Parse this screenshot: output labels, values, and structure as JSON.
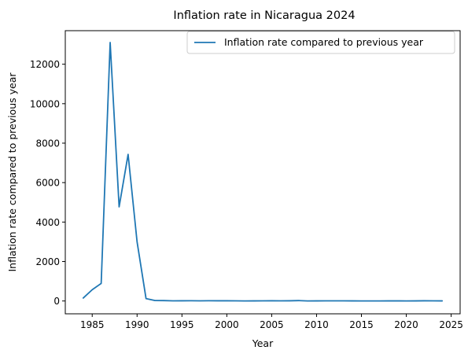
{
  "chart_data": {
    "type": "line",
    "title": "Inflation rate in Nicaragua 2024",
    "xlabel": "Year",
    "ylabel": "Inflation rate compared to previous year",
    "xlim": [
      1982,
      2026
    ],
    "ylim": [
      -650,
      13700
    ],
    "xticks": [
      1985,
      1990,
      1995,
      2000,
      2005,
      2010,
      2015,
      2020,
      2025
    ],
    "yticks": [
      0,
      2000,
      4000,
      6000,
      8000,
      10000,
      12000
    ],
    "grid": false,
    "legend_position": "top-right",
    "series": [
      {
        "name": "Inflation rate compared to previous year",
        "color": "#1f77b4",
        "x": [
          1984,
          1985,
          1986,
          1987,
          1988,
          1989,
          1990,
          1991,
          1992,
          1993,
          1994,
          1995,
          1996,
          1997,
          1998,
          1999,
          2000,
          2001,
          2002,
          2003,
          2004,
          2005,
          2006,
          2007,
          2008,
          2009,
          2010,
          2011,
          2012,
          2013,
          2014,
          2015,
          2016,
          2017,
          2018,
          2019,
          2020,
          2021,
          2022,
          2023,
          2024
        ],
        "y": [
          150,
          570,
          890,
          13100,
          4770,
          7430,
          3000,
          120,
          23,
          20,
          8,
          11,
          12,
          9,
          13,
          11,
          10,
          7,
          4,
          5,
          9,
          10,
          9,
          11,
          20,
          4,
          5,
          8,
          7,
          7,
          6,
          4,
          4,
          4,
          5,
          5,
          3,
          5,
          10,
          8,
          5
        ]
      }
    ]
  }
}
